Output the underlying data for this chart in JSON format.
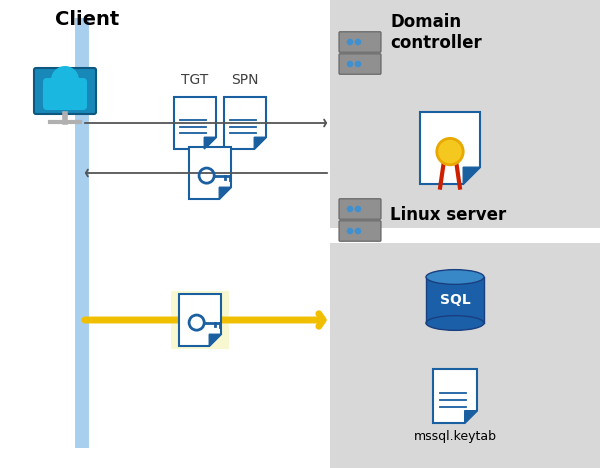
{
  "bg_color": "#ffffff",
  "client_label": "Client",
  "domain_label": "Domain\ncontroller",
  "linux_label": "Linux server",
  "tgt_label": "TGT",
  "spn_label": "SPN",
  "keytab_label": "mssql.keytab",
  "panel_color": "#d8d8d8",
  "highlight_color": "#f8f8d0",
  "arrow_color_gray": "#555555",
  "arrow_color_yellow": "#f0c000",
  "client_line_color": "#a8cfee",
  "doc_blue_dark": "#1a5fa0",
  "doc_blue_light": "#4a9fd8",
  "sql_blue_dark": "#1a3f80",
  "sql_blue_mid": "#1a5fa8",
  "sql_blue_top": "#3888c8",
  "cert_gold": "#e8a800",
  "cert_red": "#cc2000",
  "cert_gold_fill": "#f5c820",
  "server_body": "#909090",
  "server_dark": "#606060",
  "server_led": "#4090d0",
  "person_blue": "#1ab8e0",
  "person_dark": "#0880a0",
  "monitor_blue": "#1888b8",
  "monitor_dark": "#0e5880"
}
